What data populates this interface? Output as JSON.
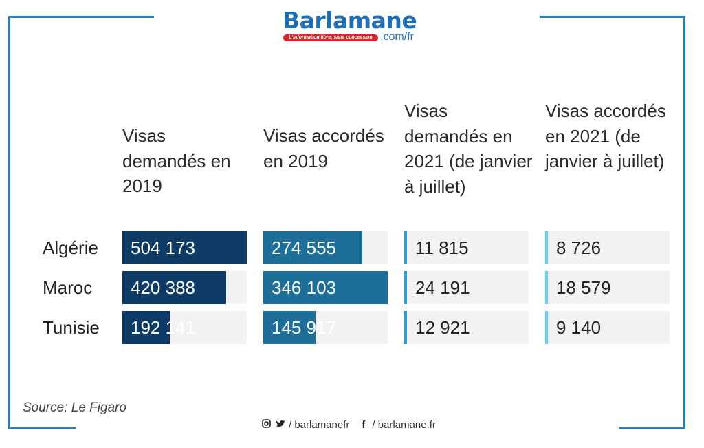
{
  "brand": {
    "name": "Barlamane",
    "tagline": "L'information libre, sans concession",
    "domain": ".com/fr",
    "color": "#1e6fb8",
    "tagline_color": "#d8262a"
  },
  "columns": [
    "Visas demandés en 2019",
    "Visas accordés en 2019",
    "Visas demandés en 2021 (de janvier à juillet)",
    "Visas accordés en 2021 (de janvier à juillet)"
  ],
  "rows": [
    {
      "country": "Algérie",
      "values": [
        "504 173",
        "274 555",
        "11 815",
        "8 726"
      ]
    },
    {
      "country": "Maroc",
      "values": [
        "420 388",
        "346 103",
        "24 191",
        "18 579"
      ]
    },
    {
      "country": "Tunisie",
      "values": [
        "192 141",
        "145 917",
        "12 921",
        "9 140"
      ]
    }
  ],
  "chart_data": {
    "type": "table",
    "columns": [
      "Visas demandés en 2019",
      "Visas accordés en 2019",
      "Visas demandés en 2021 (de janvier à juillet)",
      "Visas accordés en 2021 (de janvier à juillet)"
    ],
    "categories": [
      "Algérie",
      "Maroc",
      "Tunisie"
    ],
    "series": [
      {
        "name": "Visas demandés en 2019",
        "values": [
          504173,
          420388,
          192141
        ],
        "bar_max": 504173,
        "color": "#0d3b66"
      },
      {
        "name": "Visas accordés en 2019",
        "values": [
          274555,
          346103,
          145917
        ],
        "bar_max": 346103,
        "color": "#1e6e9a"
      },
      {
        "name": "Visas demandés en 2021 (de janvier à juillet)",
        "values": [
          11815,
          24191,
          12921
        ],
        "color": "#2a9fd6"
      },
      {
        "name": "Visas accordés en 2021 (de janvier à juillet)",
        "values": [
          8726,
          18579,
          9140
        ],
        "color": "#6ccaf0"
      }
    ]
  },
  "source": "Source: Le Figaro",
  "footer": {
    "handle1": "/ barlamanefr",
    "handle2": "/ barlamane.fr",
    "icons": [
      "instagram-icon",
      "twitter-icon",
      "facebook-icon"
    ]
  }
}
